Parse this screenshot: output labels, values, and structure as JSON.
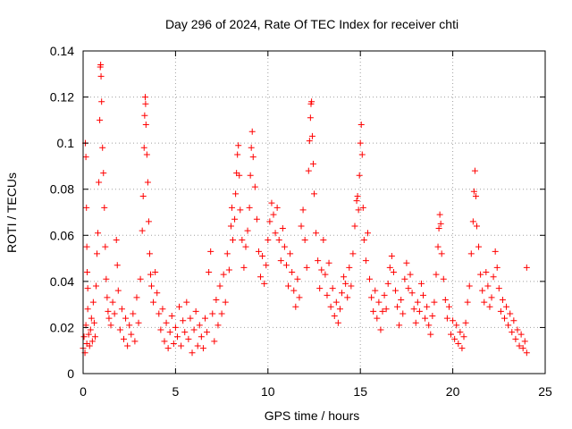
{
  "chart_data": {
    "type": "scatter",
    "title": "Day 296 of 2024, Rate Of TEC Index for receiver chti",
    "xlabel": "GPS time / hours",
    "ylabel": "ROTI / TECUs",
    "xlim": [
      0,
      25
    ],
    "ylim": [
      0,
      0.14
    ],
    "xticks": [
      0,
      5,
      10,
      15,
      20,
      25
    ],
    "yticks": [
      0,
      0.02,
      0.04,
      0.06,
      0.08,
      0.1,
      0.12,
      0.14
    ],
    "xtick_labels": [
      "0",
      "5",
      "10",
      "15",
      "20",
      "25"
    ],
    "ytick_labels": [
      "0",
      "0.02",
      "0.04",
      "0.06",
      "0.08",
      "0.1",
      "0.12",
      "0.14"
    ],
    "grid": true,
    "marker": "+",
    "marker_color": "#ff0000",
    "series": [
      {
        "points": [
          [
            0.0,
            0.011
          ],
          [
            0.05,
            0.016
          ],
          [
            0.1,
            0.009
          ],
          [
            0.15,
            0.021
          ],
          [
            0.2,
            0.013
          ],
          [
            0.25,
            0.028
          ],
          [
            0.3,
            0.017
          ],
          [
            0.35,
            0.012
          ],
          [
            0.4,
            0.019
          ],
          [
            0.45,
            0.024
          ],
          [
            0.5,
            0.014
          ],
          [
            0.55,
            0.031
          ],
          [
            0.6,
            0.022
          ],
          [
            0.65,
            0.016
          ],
          [
            0.7,
            0.038
          ],
          [
            0.75,
            0.052
          ],
          [
            0.8,
            0.061
          ],
          [
            0.85,
            0.083
          ],
          [
            0.9,
            0.11
          ],
          [
            0.93,
            0.133
          ],
          [
            0.95,
            0.134
          ],
          [
            0.97,
            0.129
          ],
          [
            1.0,
            0.118
          ],
          [
            1.05,
            0.098
          ],
          [
            1.1,
            0.087
          ],
          [
            1.15,
            0.072
          ],
          [
            1.2,
            0.055
          ],
          [
            1.25,
            0.041
          ],
          [
            1.3,
            0.033
          ],
          [
            1.35,
            0.027
          ],
          [
            0.12,
            0.1
          ],
          [
            0.15,
            0.094
          ],
          [
            0.18,
            0.072
          ],
          [
            0.2,
            0.055
          ],
          [
            0.22,
            0.044
          ],
          [
            0.25,
            0.037
          ],
          [
            1.4,
            0.024
          ],
          [
            1.5,
            0.021
          ],
          [
            1.6,
            0.031
          ],
          [
            1.7,
            0.026
          ],
          [
            1.8,
            0.058
          ],
          [
            1.85,
            0.047
          ],
          [
            1.9,
            0.036
          ],
          [
            2.0,
            0.019
          ],
          [
            2.1,
            0.028
          ],
          [
            2.2,
            0.015
          ],
          [
            2.3,
            0.024
          ],
          [
            2.4,
            0.012
          ],
          [
            2.5,
            0.021
          ],
          [
            2.6,
            0.017
          ],
          [
            2.7,
            0.026
          ],
          [
            2.8,
            0.014
          ],
          [
            2.9,
            0.033
          ],
          [
            3.0,
            0.022
          ],
          [
            3.1,
            0.041
          ],
          [
            3.2,
            0.062
          ],
          [
            3.25,
            0.077
          ],
          [
            3.3,
            0.098
          ],
          [
            3.33,
            0.112
          ],
          [
            3.36,
            0.12
          ],
          [
            3.38,
            0.117
          ],
          [
            3.4,
            0.108
          ],
          [
            3.45,
            0.095
          ],
          [
            3.5,
            0.083
          ],
          [
            3.55,
            0.066
          ],
          [
            3.6,
            0.052
          ],
          [
            3.65,
            0.043
          ],
          [
            3.7,
            0.038
          ],
          [
            3.8,
            0.031
          ],
          [
            3.9,
            0.044
          ],
          [
            4.0,
            0.035
          ],
          [
            4.1,
            0.026
          ],
          [
            4.2,
            0.019
          ],
          [
            4.3,
            0.028
          ],
          [
            4.4,
            0.014
          ],
          [
            4.5,
            0.022
          ],
          [
            4.6,
            0.011
          ],
          [
            4.7,
            0.018
          ],
          [
            4.8,
            0.025
          ],
          [
            4.9,
            0.013
          ],
          [
            5.0,
            0.02
          ],
          [
            5.1,
            0.016
          ],
          [
            5.2,
            0.029
          ],
          [
            5.3,
            0.012
          ],
          [
            5.4,
            0.023
          ],
          [
            5.5,
            0.018
          ],
          [
            5.6,
            0.031
          ],
          [
            5.7,
            0.015
          ],
          [
            5.8,
            0.024
          ],
          [
            5.9,
            0.009
          ],
          [
            6.0,
            0.019
          ],
          [
            6.1,
            0.027
          ],
          [
            6.2,
            0.012
          ],
          [
            6.3,
            0.021
          ],
          [
            6.4,
            0.016
          ],
          [
            6.5,
            0.011
          ],
          [
            6.6,
            0.024
          ],
          [
            6.7,
            0.018
          ],
          [
            6.8,
            0.044
          ],
          [
            6.9,
            0.053
          ],
          [
            7.0,
            0.026
          ],
          [
            7.1,
            0.014
          ],
          [
            7.2,
            0.032
          ],
          [
            7.3,
            0.021
          ],
          [
            7.4,
            0.038
          ],
          [
            7.5,
            0.026
          ],
          [
            7.6,
            0.043
          ],
          [
            7.7,
            0.031
          ],
          [
            7.8,
            0.052
          ],
          [
            7.9,
            0.045
          ],
          [
            8.0,
            0.064
          ],
          [
            8.05,
            0.072
          ],
          [
            8.1,
            0.058
          ],
          [
            8.2,
            0.067
          ],
          [
            8.25,
            0.078
          ],
          [
            8.3,
            0.087
          ],
          [
            8.35,
            0.095
          ],
          [
            8.4,
            0.099
          ],
          [
            8.45,
            0.086
          ],
          [
            8.5,
            0.071
          ],
          [
            8.6,
            0.058
          ],
          [
            8.7,
            0.046
          ],
          [
            8.8,
            0.055
          ],
          [
            8.9,
            0.062
          ],
          [
            9.0,
            0.072
          ],
          [
            9.05,
            0.086
          ],
          [
            9.1,
            0.098
          ],
          [
            9.15,
            0.105
          ],
          [
            9.2,
            0.094
          ],
          [
            9.3,
            0.081
          ],
          [
            9.4,
            0.067
          ],
          [
            9.5,
            0.053
          ],
          [
            9.6,
            0.042
          ],
          [
            9.7,
            0.051
          ],
          [
            9.8,
            0.039
          ],
          [
            9.9,
            0.047
          ],
          [
            10.0,
            0.058
          ],
          [
            10.1,
            0.066
          ],
          [
            10.2,
            0.074
          ],
          [
            10.3,
            0.069
          ],
          [
            10.4,
            0.061
          ],
          [
            10.5,
            0.072
          ],
          [
            10.6,
            0.058
          ],
          [
            10.7,
            0.049
          ],
          [
            10.8,
            0.063
          ],
          [
            10.9,
            0.055
          ],
          [
            11.0,
            0.047
          ],
          [
            11.1,
            0.038
          ],
          [
            11.2,
            0.052
          ],
          [
            11.3,
            0.044
          ],
          [
            11.4,
            0.036
          ],
          [
            11.5,
            0.029
          ],
          [
            11.6,
            0.041
          ],
          [
            11.7,
            0.033
          ],
          [
            11.8,
            0.064
          ],
          [
            11.9,
            0.071
          ],
          [
            12.0,
            0.058
          ],
          [
            12.1,
            0.046
          ],
          [
            12.2,
            0.088
          ],
          [
            12.25,
            0.101
          ],
          [
            12.3,
            0.111
          ],
          [
            12.33,
            0.117
          ],
          [
            12.36,
            0.118
          ],
          [
            12.4,
            0.103
          ],
          [
            12.45,
            0.091
          ],
          [
            12.5,
            0.078
          ],
          [
            12.6,
            0.061
          ],
          [
            12.7,
            0.049
          ],
          [
            12.8,
            0.037
          ],
          [
            12.9,
            0.045
          ],
          [
            13.0,
            0.058
          ],
          [
            13.1,
            0.043
          ],
          [
            13.2,
            0.034
          ],
          [
            13.3,
            0.048
          ],
          [
            13.4,
            0.029
          ],
          [
            13.5,
            0.037
          ],
          [
            13.6,
            0.025
          ],
          [
            13.7,
            0.031
          ],
          [
            13.8,
            0.022
          ],
          [
            13.9,
            0.028
          ],
          [
            14.0,
            0.035
          ],
          [
            14.1,
            0.042
          ],
          [
            14.2,
            0.039
          ],
          [
            14.3,
            0.033
          ],
          [
            14.4,
            0.046
          ],
          [
            14.5,
            0.038
          ],
          [
            14.6,
            0.052
          ],
          [
            14.7,
            0.064
          ],
          [
            14.8,
            0.075
          ],
          [
            14.85,
            0.077
          ],
          [
            14.9,
            0.071
          ],
          [
            14.95,
            0.086
          ],
          [
            15.0,
            0.1
          ],
          [
            15.05,
            0.108
          ],
          [
            15.1,
            0.095
          ],
          [
            15.15,
            0.072
          ],
          [
            15.2,
            0.058
          ],
          [
            15.3,
            0.049
          ],
          [
            15.4,
            0.061
          ],
          [
            15.5,
            0.041
          ],
          [
            15.6,
            0.033
          ],
          [
            15.7,
            0.027
          ],
          [
            15.8,
            0.036
          ],
          [
            15.9,
            0.024
          ],
          [
            16.0,
            0.031
          ],
          [
            16.1,
            0.019
          ],
          [
            16.2,
            0.027
          ],
          [
            16.3,
            0.034
          ],
          [
            16.4,
            0.028
          ],
          [
            16.5,
            0.039
          ],
          [
            16.6,
            0.046
          ],
          [
            16.7,
            0.051
          ],
          [
            16.8,
            0.044
          ],
          [
            16.9,
            0.036
          ],
          [
            17.0,
            0.029
          ],
          [
            17.1,
            0.021
          ],
          [
            17.2,
            0.032
          ],
          [
            17.3,
            0.026
          ],
          [
            17.4,
            0.041
          ],
          [
            17.5,
            0.048
          ],
          [
            17.6,
            0.037
          ],
          [
            17.7,
            0.043
          ],
          [
            17.8,
            0.035
          ],
          [
            17.9,
            0.028
          ],
          [
            18.0,
            0.022
          ],
          [
            18.1,
            0.031
          ],
          [
            18.2,
            0.027
          ],
          [
            18.3,
            0.039
          ],
          [
            18.4,
            0.034
          ],
          [
            18.5,
            0.024
          ],
          [
            18.6,
            0.029
          ],
          [
            18.7,
            0.021
          ],
          [
            18.8,
            0.017
          ],
          [
            18.9,
            0.025
          ],
          [
            19.0,
            0.031
          ],
          [
            19.1,
            0.043
          ],
          [
            19.2,
            0.055
          ],
          [
            19.25,
            0.063
          ],
          [
            19.3,
            0.069
          ],
          [
            19.35,
            0.065
          ],
          [
            19.4,
            0.052
          ],
          [
            19.5,
            0.041
          ],
          [
            19.6,
            0.032
          ],
          [
            19.7,
            0.024
          ],
          [
            19.8,
            0.029
          ],
          [
            19.9,
            0.017
          ],
          [
            20.0,
            0.023
          ],
          [
            20.1,
            0.015
          ],
          [
            20.2,
            0.021
          ],
          [
            20.3,
            0.013
          ],
          [
            20.4,
            0.018
          ],
          [
            20.5,
            0.011
          ],
          [
            20.6,
            0.016
          ],
          [
            20.7,
            0.022
          ],
          [
            20.8,
            0.031
          ],
          [
            20.9,
            0.038
          ],
          [
            21.0,
            0.052
          ],
          [
            21.1,
            0.066
          ],
          [
            21.15,
            0.079
          ],
          [
            21.2,
            0.088
          ],
          [
            21.25,
            0.077
          ],
          [
            21.3,
            0.064
          ],
          [
            21.4,
            0.055
          ],
          [
            21.5,
            0.043
          ],
          [
            21.6,
            0.036
          ],
          [
            21.7,
            0.031
          ],
          [
            21.8,
            0.044
          ],
          [
            21.9,
            0.038
          ],
          [
            22.0,
            0.029
          ],
          [
            22.1,
            0.033
          ],
          [
            22.2,
            0.042
          ],
          [
            22.3,
            0.053
          ],
          [
            22.4,
            0.046
          ],
          [
            22.5,
            0.037
          ],
          [
            22.6,
            0.027
          ],
          [
            22.7,
            0.032
          ],
          [
            22.8,
            0.024
          ],
          [
            22.9,
            0.029
          ],
          [
            23.0,
            0.021
          ],
          [
            23.1,
            0.026
          ],
          [
            23.2,
            0.018
          ],
          [
            23.3,
            0.023
          ],
          [
            23.4,
            0.015
          ],
          [
            23.5,
            0.019
          ],
          [
            23.6,
            0.012
          ],
          [
            23.7,
            0.017
          ],
          [
            23.8,
            0.011
          ],
          [
            23.9,
            0.014
          ],
          [
            24.0,
            0.046
          ],
          [
            24.0,
            0.009
          ]
        ]
      }
    ]
  }
}
